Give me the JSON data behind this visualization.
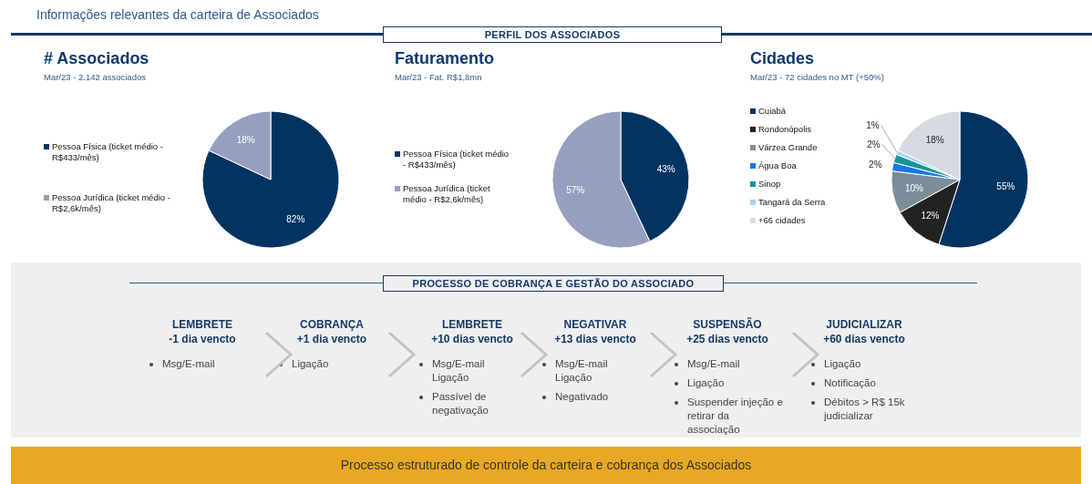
{
  "chart_data": [
    {
      "type": "other",
      "title": "Informações relevantes da carteira de Associados",
      "subtitle": "PERFIL DOS ASSOCIADOS"
    },
    {
      "type": "pie",
      "title": "# Associados",
      "subtitle": "Mar/23 - 2.142 associados",
      "categories": [
        "Pessoa Física (ticket médio - R$433/mês)",
        "Pessoa Jurídica (ticket médio - R$2,6k/mês)"
      ],
      "values": [
        82,
        18
      ],
      "colors": [
        "#023462",
        "#96a0be"
      ],
      "value_labels": [
        "82%",
        "18%"
      ],
      "legend": "left"
    },
    {
      "type": "pie",
      "title": "Faturamento",
      "subtitle": "Mar/23 - Fat. R$1,8mn",
      "categories": [
        "Pessoa Física (ticket médio - R$433/mês)",
        "Pessoa Jurídica (ticket médio - R$2,6k/mês)"
      ],
      "values": [
        43,
        57
      ],
      "colors": [
        "#023462",
        "#96a0be"
      ],
      "value_labels": [
        "43%",
        "57%"
      ],
      "legend": "left"
    },
    {
      "type": "pie",
      "title": "Cidades",
      "subtitle": "Mar/23 - 72 cidades no MT (+50%)",
      "categories": [
        "Cuiabá",
        "Rondonópolis",
        "Várzea Grande",
        "Água Boa",
        "Sinop",
        "Tangará da Serra",
        "+66 cidades"
      ],
      "values": [
        55,
        12,
        10,
        2,
        2,
        1,
        18
      ],
      "colors": [
        "#023462",
        "#222222",
        "#7b8d98",
        "#1677e8",
        "#17939b",
        "#a9d3f5",
        "#d6dae3"
      ],
      "value_labels": [
        "55%",
        "12%",
        "10%",
        "2%",
        "2%",
        "1%",
        "18%"
      ],
      "legend": "left"
    },
    {
      "type": "other",
      "title": "PROCESSO DE COBRANÇA E GESTÃO DO ASSOCIADO",
      "categories": [
        "LEMBRETE\n-1 dia vencto",
        "COBRANÇA\n+1 dia vencto",
        "LEMBRETE\n+10 dias vencto",
        "NEGATIVAR\n+13 dias vencto",
        "SUSPENSÃO\n+25 dias vencto",
        "JUDICIALIZAR\n+60 dias vencto"
      ],
      "annotations": [
        {
          "text": "Msg/E-mail",
          "x": "LEMBRETE\n-1 dia vencto"
        },
        {
          "text": "Ligação",
          "x": "COBRANÇA\n+1 dia vencto"
        },
        {
          "text": "Msg/E-mail\nLigação",
          "x": "LEMBRETE\n+10 dias vencto"
        },
        {
          "text": "Passível de\nnegativação",
          "x": "LEMBRETE\n+10 dias vencto"
        },
        {
          "text": "Msg/E-mail\nLigação",
          "x": "NEGATIVAR\n+13 dias vencto"
        },
        {
          "text": "Negativado",
          "x": "NEGATIVAR\n+13 dias vencto"
        },
        {
          "text": "Msg/E-mail",
          "x": "SUSPENSÃO\n+25 dias vencto"
        },
        {
          "text": "Ligação",
          "x": "SUSPENSÃO\n+25 dias vencto"
        },
        {
          "text": "Suspender injeção e\nretirar da\nassociação",
          "x": "SUSPENSÃO\n+25 dias vencto"
        },
        {
          "text": "Ligação",
          "x": "JUDICIALIZAR\n+60 dias vencto"
        },
        {
          "text": "Notificação",
          "x": "JUDICIALIZAR\n+60 dias vencto"
        },
        {
          "text": "Débitos > R$ 15k\njudicializar",
          "x": "JUDICIALIZAR\n+60 dias vencto"
        },
        "Processo estruturado de controle da carteira e cobrança dos Associados"
      ]
    }
  ]
}
